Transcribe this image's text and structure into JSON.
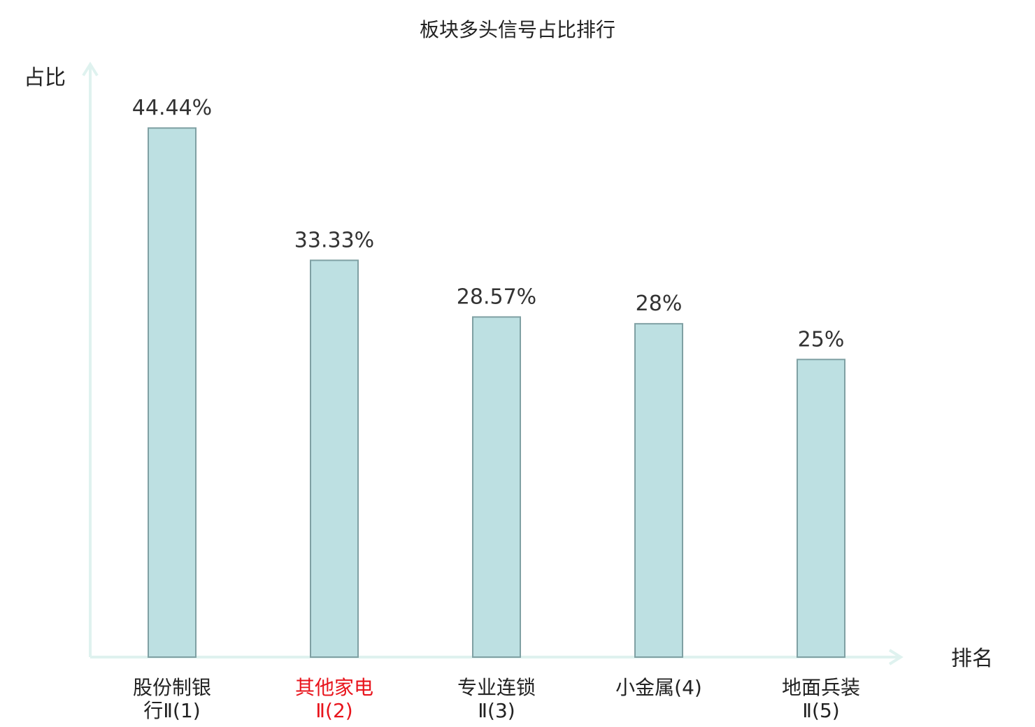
{
  "chart_data": {
    "type": "bar",
    "title": "板块多头信号占比排行",
    "ylabel": "占比",
    "xlabel": "排名",
    "ylim": [
      0,
      50
    ],
    "grid": false,
    "categories": [
      {
        "lines": [
          "股份制银",
          "行Ⅱ(1)"
        ],
        "highlight": false
      },
      {
        "lines": [
          "其他家电",
          "Ⅱ(2)"
        ],
        "highlight": true
      },
      {
        "lines": [
          "专业连锁",
          "Ⅱ(3)"
        ],
        "highlight": false
      },
      {
        "lines": [
          "小金属(4)"
        ],
        "highlight": false
      },
      {
        "lines": [
          "地面兵装",
          "Ⅱ(5)"
        ],
        "highlight": false
      }
    ],
    "values": [
      44.44,
      33.33,
      28.57,
      28,
      25
    ],
    "value_labels": [
      "44.44%",
      "33.33%",
      "28.57%",
      "28%",
      "25%"
    ],
    "colors": {
      "bar_fill": "#bde0e2",
      "bar_stroke": "#7fa0a3",
      "axis": "#dff2ef",
      "highlight_text": "#e8141c",
      "normal_text": "#222222"
    }
  }
}
